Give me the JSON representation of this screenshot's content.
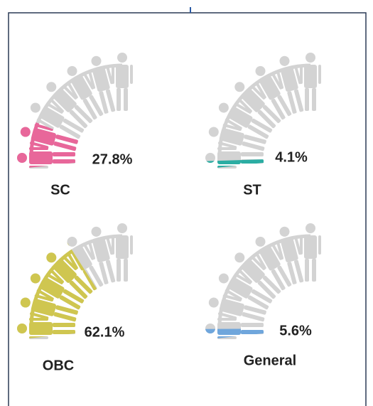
{
  "chart_data": {
    "type": "pictogram-arc",
    "categories": [
      "SC",
      "ST",
      "OBC",
      "General"
    ],
    "values": [
      27.8,
      4.1,
      62.1,
      5.6
    ],
    "value_labels": [
      "27.8%",
      "4.1%",
      "62.1%",
      "5.6%"
    ],
    "colors": [
      "#e8679a",
      "#2bada3",
      "#cfc650",
      "#6fa6dc"
    ]
  }
}
